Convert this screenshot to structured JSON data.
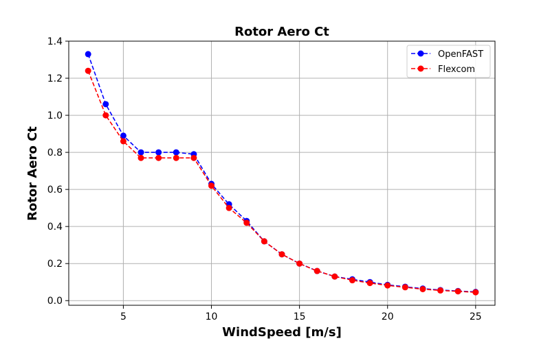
{
  "chart_data": {
    "type": "line",
    "title": "Rotor Aero Ct",
    "xlabel": "WindSpeed [m/s]",
    "ylabel": "Rotor Aero Ct",
    "xlim": [
      1.9,
      26.1
    ],
    "ylim": [
      -0.025,
      1.4
    ],
    "xticks": [
      5,
      10,
      15,
      20,
      25
    ],
    "yticks": [
      0.0,
      0.2,
      0.4,
      0.6,
      0.8,
      1.0,
      1.2,
      1.4
    ],
    "xtick_labels": [
      "5",
      "10",
      "15",
      "20",
      "25"
    ],
    "ytick_labels": [
      "0.0",
      "0.2",
      "0.4",
      "0.6",
      "0.8",
      "1.0",
      "1.2",
      "1.4"
    ],
    "grid": true,
    "legend_position": "top-right",
    "x": [
      3,
      4,
      5,
      6,
      7,
      8,
      9,
      10,
      11,
      12,
      13,
      14,
      15,
      16,
      17,
      18,
      19,
      20,
      21,
      22,
      23,
      24,
      25
    ],
    "series": [
      {
        "name": "OpenFAST",
        "color": "#0000ff",
        "linestyle": "dashed",
        "marker": "circle",
        "values": [
          1.33,
          1.06,
          0.89,
          0.8,
          0.8,
          0.8,
          0.79,
          0.63,
          0.52,
          0.43,
          0.32,
          0.25,
          0.2,
          0.16,
          0.13,
          0.115,
          0.1,
          0.085,
          0.075,
          0.065,
          0.057,
          0.052,
          0.047
        ]
      },
      {
        "name": "Flexcom",
        "color": "#ff0000",
        "linestyle": "dashed",
        "marker": "circle",
        "values": [
          1.24,
          1.0,
          0.86,
          0.77,
          0.77,
          0.77,
          0.77,
          0.62,
          0.5,
          0.42,
          0.32,
          0.25,
          0.2,
          0.16,
          0.13,
          0.11,
          0.095,
          0.082,
          0.072,
          0.062,
          0.055,
          0.05,
          0.045
        ]
      }
    ]
  }
}
